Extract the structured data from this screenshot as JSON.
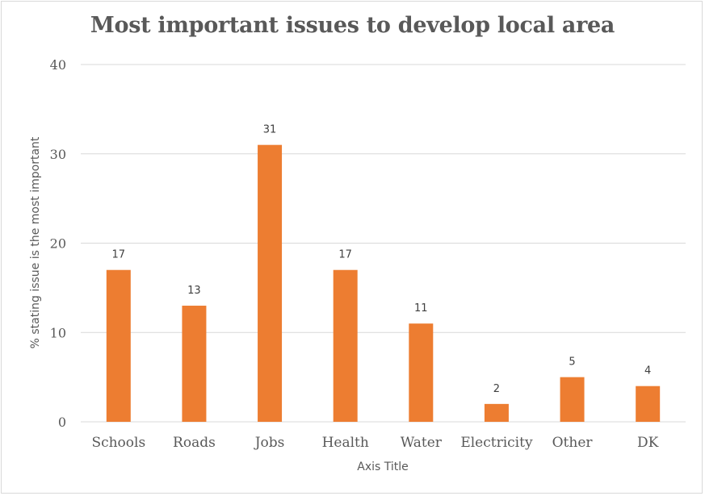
{
  "chart_data": {
    "type": "bar",
    "title": "Most important issues to develop local area",
    "xlabel": "Axis Title",
    "ylabel": "% stating issue is the most important",
    "categories": [
      "Schools",
      "Roads",
      "Jobs",
      "Health",
      "Water",
      "Electricity",
      "Other",
      "DK"
    ],
    "values": [
      17,
      13,
      31,
      17,
      11,
      2,
      5,
      4
    ],
    "ylim": [
      0,
      40
    ],
    "yticks": [
      0,
      10,
      20,
      30,
      40
    ],
    "grid": true,
    "data_labels": true,
    "bar_color": "#ED7D31",
    "grid_color": "#D9D9D9"
  }
}
